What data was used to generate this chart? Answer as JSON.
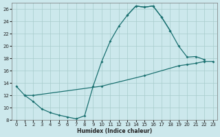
{
  "xlabel": "Humidex (Indice chaleur)",
  "xlim": [
    -0.5,
    23.5
  ],
  "ylim": [
    8,
    27
  ],
  "yticks": [
    8,
    10,
    12,
    14,
    16,
    18,
    20,
    22,
    24,
    26
  ],
  "xticks": [
    0,
    1,
    2,
    3,
    4,
    5,
    6,
    7,
    8,
    9,
    10,
    11,
    12,
    13,
    14,
    15,
    16,
    17,
    18,
    19,
    20,
    21,
    22,
    23
  ],
  "background_color": "#cce8ec",
  "grid_color": "#a8cccc",
  "line_color": "#1a7070",
  "curve1_x": [
    0,
    1,
    2,
    3,
    4,
    5,
    6,
    7,
    8,
    9,
    10,
    11,
    12,
    13,
    14,
    15,
    16,
    17,
    18
  ],
  "curve1_y": [
    13.5,
    12.0,
    11.0,
    9.8,
    9.2,
    8.8,
    8.5,
    8.2,
    8.7,
    13.5,
    17.5,
    20.8,
    23.2,
    25.0,
    26.5,
    26.3,
    26.5,
    24.7,
    22.5
  ],
  "curve2_x": [
    13,
    14,
    15,
    16,
    17,
    18,
    19,
    20,
    21,
    22
  ],
  "curve2_y": [
    25.0,
    26.5,
    26.3,
    26.5,
    24.7,
    22.5,
    20.0,
    18.2,
    18.3,
    17.8
  ],
  "curve3_x": [
    1,
    2,
    10,
    15,
    19,
    20,
    21,
    22,
    23
  ],
  "curve3_y": [
    12.0,
    12.0,
    13.5,
    15.2,
    16.8,
    17.0,
    17.2,
    17.5,
    17.5
  ]
}
